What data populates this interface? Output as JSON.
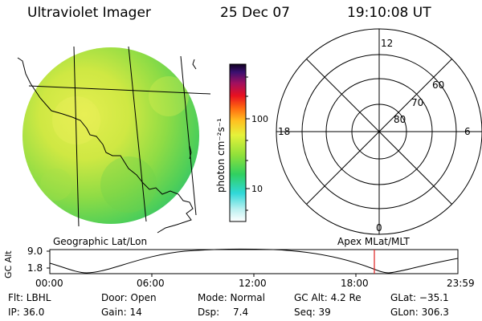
{
  "header": {
    "title": "Ultraviolet Imager",
    "date": "25 Dec 07",
    "time": "19:10:08 UT"
  },
  "colorbar": {
    "unit_label": "photon cm⁻²s⁻¹",
    "ticks": [
      "100",
      "10"
    ]
  },
  "polar_plot": {
    "mlt_labels": [
      "12",
      "18",
      "6",
      "0"
    ],
    "lat_labels": [
      "60",
      "70",
      "80"
    ]
  },
  "orbit": {
    "left_caption": "Geographic Lat/Lon",
    "right_caption": "Apex MLat/MLT",
    "y_axis_label": "GC Alt",
    "y_ticks": [
      "9.0",
      "1.8"
    ],
    "x_ticks": [
      "00:00",
      "06:00",
      "12:00",
      "18:00",
      "23:59"
    ],
    "current_marker_color": "#e02020"
  },
  "status": {
    "flt": "Flt: LBHL",
    "ip": "IP: 36.0",
    "door": "Door: Open",
    "gain": "Gain: 14",
    "mode": "Mode: Normal",
    "dsp_label": "Dsp:",
    "dsp_value": "7.4",
    "gcalt": "GC Alt: 4.2 Re",
    "seq": "Seq: 39",
    "glat": "GLat: −35.1",
    "glon": "GLon: 306.3"
  }
}
